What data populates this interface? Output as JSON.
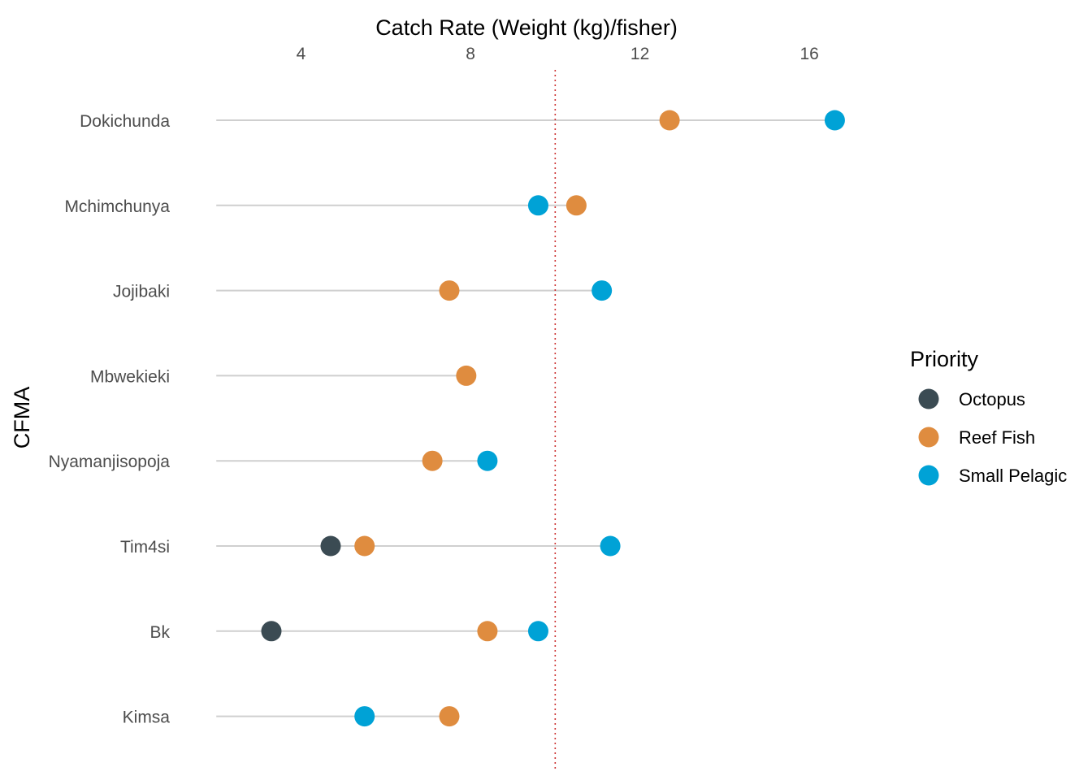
{
  "chart_data": {
    "type": "dot",
    "title": "",
    "xlabel": "Catch Rate (Weight (kg)/fisher)",
    "ylabel": "CFMA",
    "x_axis_position": "top",
    "xlim": [
      1.9,
      17.8
    ],
    "xticks": [
      4,
      8,
      12,
      16
    ],
    "reference_line": {
      "x": 10.0,
      "style": "dotted",
      "color": "#cc3333"
    },
    "grid": false,
    "legend": {
      "title": "Priority",
      "position": "right",
      "entries": [
        {
          "name": "Octopus",
          "color": "#3b4b53"
        },
        {
          "name": "Reef Fish",
          "color": "#df8c3f"
        },
        {
          "name": "Small Pelagic",
          "color": "#00a2d6"
        }
      ]
    },
    "categories": [
      "Dokichunda",
      "Mchimchunya",
      "Jojibaki",
      "Mbwekieki",
      "Nyamanjisopoja",
      "Tim4si",
      "Bk",
      "Kimsa"
    ],
    "segment_start": 2.0,
    "series": [
      {
        "name": "Octopus",
        "color": "#3b4b53",
        "values": [
          null,
          null,
          null,
          null,
          null,
          4.7,
          3.3,
          null
        ]
      },
      {
        "name": "Reef Fish",
        "color": "#df8c3f",
        "values": [
          12.7,
          10.5,
          7.5,
          7.9,
          7.1,
          5.5,
          8.4,
          7.5
        ]
      },
      {
        "name": "Small Pelagic",
        "color": "#00a2d6",
        "values": [
          16.6,
          9.6,
          11.1,
          null,
          8.4,
          11.3,
          9.6,
          5.5
        ]
      }
    ]
  }
}
